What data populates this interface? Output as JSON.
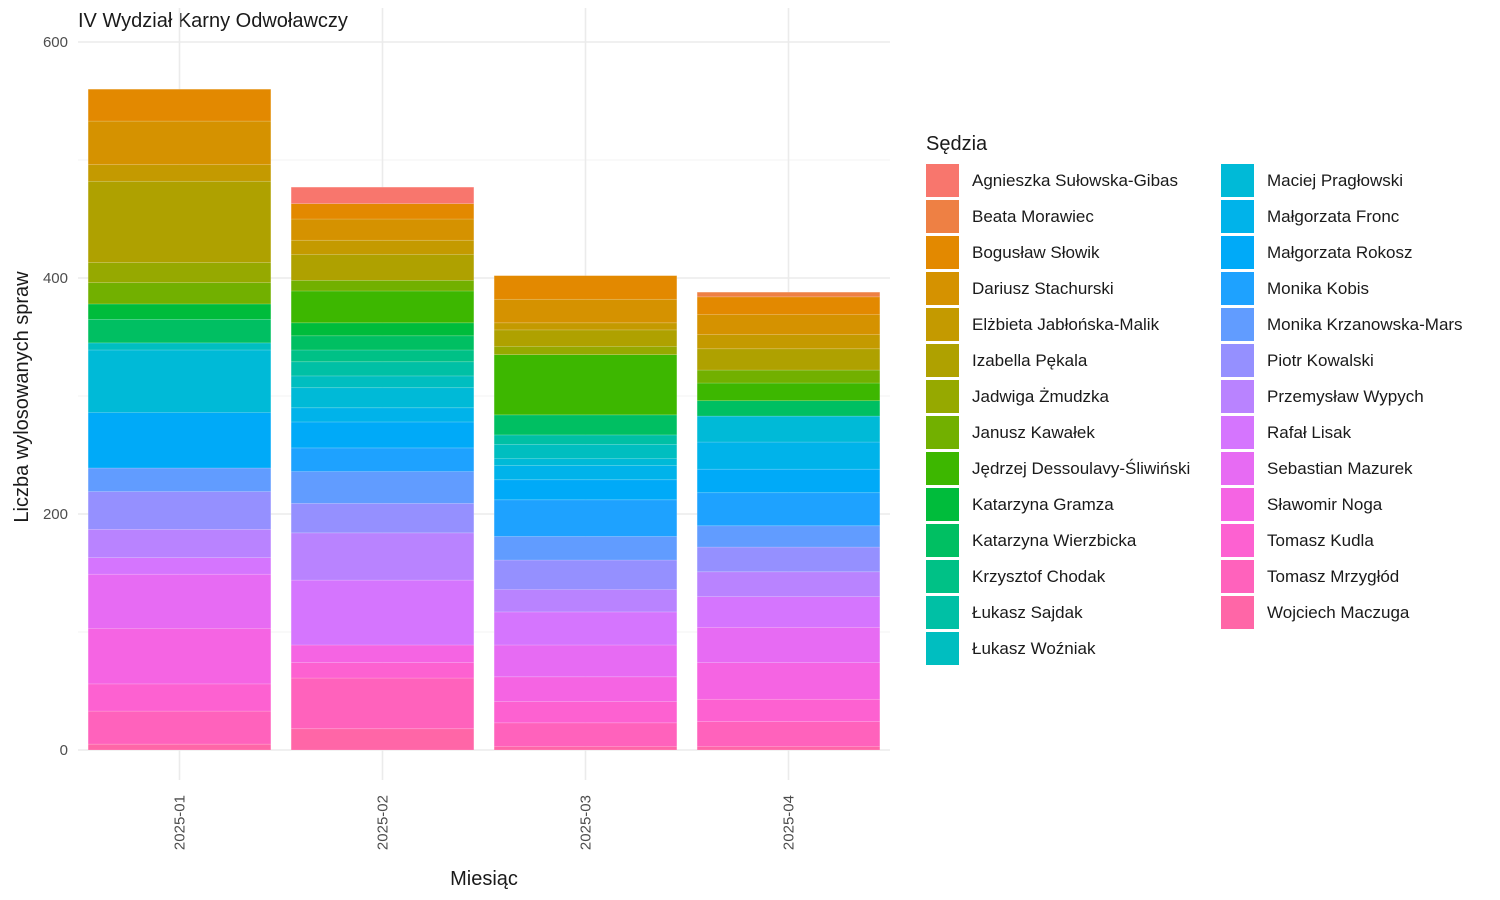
{
  "chart_data": {
    "type": "bar",
    "stacked": true,
    "title": "IV Wydział Karny Odwoławczy",
    "xlabel": "Miesiąc",
    "ylabel": "Liczba wylosowanych spraw",
    "ylim": [
      0,
      600
    ],
    "yticks": [
      0,
      200,
      400,
      600
    ],
    "grid": true,
    "legend_title": "Sędzia",
    "legend_position": "right",
    "categories": [
      "2025-01",
      "2025-02",
      "2025-03",
      "2025-04"
    ],
    "series": [
      {
        "name": "Agnieszka Sułowska-Gibas",
        "color": "#F8766D",
        "values": [
          0,
          14,
          0,
          0
        ]
      },
      {
        "name": "Beata Morawiec",
        "color": "#EE8044",
        "values": [
          0,
          0,
          0,
          4
        ]
      },
      {
        "name": "Bogusław Słowik",
        "color": "#E38900",
        "values": [
          27,
          13,
          20,
          15
        ]
      },
      {
        "name": "Dariusz Stachurski",
        "color": "#D59200",
        "values": [
          37,
          18,
          20,
          17
        ]
      },
      {
        "name": "Elżbieta Jabłońska-Malik",
        "color": "#C49A00",
        "values": [
          14,
          12,
          6,
          12
        ]
      },
      {
        "name": "Izabella Pękala",
        "color": "#AFA100",
        "values": [
          69,
          22,
          14,
          18
        ]
      },
      {
        "name": "Jadwiga Żmudzka",
        "color": "#96A900",
        "values": [
          17,
          0,
          7,
          0
        ]
      },
      {
        "name": "Janusz Kawałek",
        "color": "#72B000",
        "values": [
          18,
          9,
          0,
          11
        ]
      },
      {
        "name": "Jędrzej Dessoulavy-Śliwiński",
        "color": "#3DB700",
        "values": [
          0,
          27,
          51,
          15
        ]
      },
      {
        "name": "Katarzyna Gramza",
        "color": "#00BC3B",
        "values": [
          13,
          11,
          0,
          0
        ]
      },
      {
        "name": "Katarzyna Wierzbicka",
        "color": "#00BF62",
        "values": [
          20,
          12,
          17,
          13
        ]
      },
      {
        "name": "Krzysztof Chodak",
        "color": "#00C186",
        "values": [
          0,
          10,
          0,
          0
        ]
      },
      {
        "name": "Łukasz Sajdak",
        "color": "#00C0A5",
        "values": [
          0,
          12,
          8,
          0
        ]
      },
      {
        "name": "Łukasz Woźniak",
        "color": "#00BEC0",
        "values": [
          6,
          10,
          12,
          0
        ]
      },
      {
        "name": "Maciej Pragłowski",
        "color": "#00BAD7",
        "values": [
          53,
          17,
          6,
          22
        ]
      },
      {
        "name": "Małgorzata Fronc",
        "color": "#00B3EA",
        "values": [
          0,
          12,
          12,
          23
        ]
      },
      {
        "name": "Małgorzata Rokosz",
        "color": "#00AAF8",
        "values": [
          47,
          22,
          17,
          20
        ]
      },
      {
        "name": "Monika Kobis",
        "color": "#1EA2FF",
        "values": [
          0,
          20,
          31,
          28
        ]
      },
      {
        "name": "Monika Krzanowska-Mars",
        "color": "#619CFF",
        "values": [
          20,
          27,
          20,
          18
        ]
      },
      {
        "name": "Piotr Kowalski",
        "color": "#9590FF",
        "values": [
          32,
          25,
          25,
          21
        ]
      },
      {
        "name": "Przemysław Wypych",
        "color": "#B983FF",
        "values": [
          24,
          40,
          19,
          21
        ]
      },
      {
        "name": "Rafał Lisak",
        "color": "#D575FE",
        "values": [
          14,
          55,
          28,
          26
        ]
      },
      {
        "name": "Sebastian Mazurek",
        "color": "#E76BF3",
        "values": [
          46,
          0,
          27,
          30
        ]
      },
      {
        "name": "Sławomir Noga",
        "color": "#F564E3",
        "values": [
          47,
          15,
          21,
          31
        ]
      },
      {
        "name": "Tomasz Kudla",
        "color": "#FD61D1",
        "values": [
          23,
          13,
          18,
          19
        ]
      },
      {
        "name": "Tomasz Mrzygłód",
        "color": "#FF62BC",
        "values": [
          28,
          43,
          20,
          21
        ]
      },
      {
        "name": "Wojciech Maczuga",
        "color": "#FF66A7",
        "values": [
          5,
          18,
          3,
          3
        ]
      }
    ]
  }
}
